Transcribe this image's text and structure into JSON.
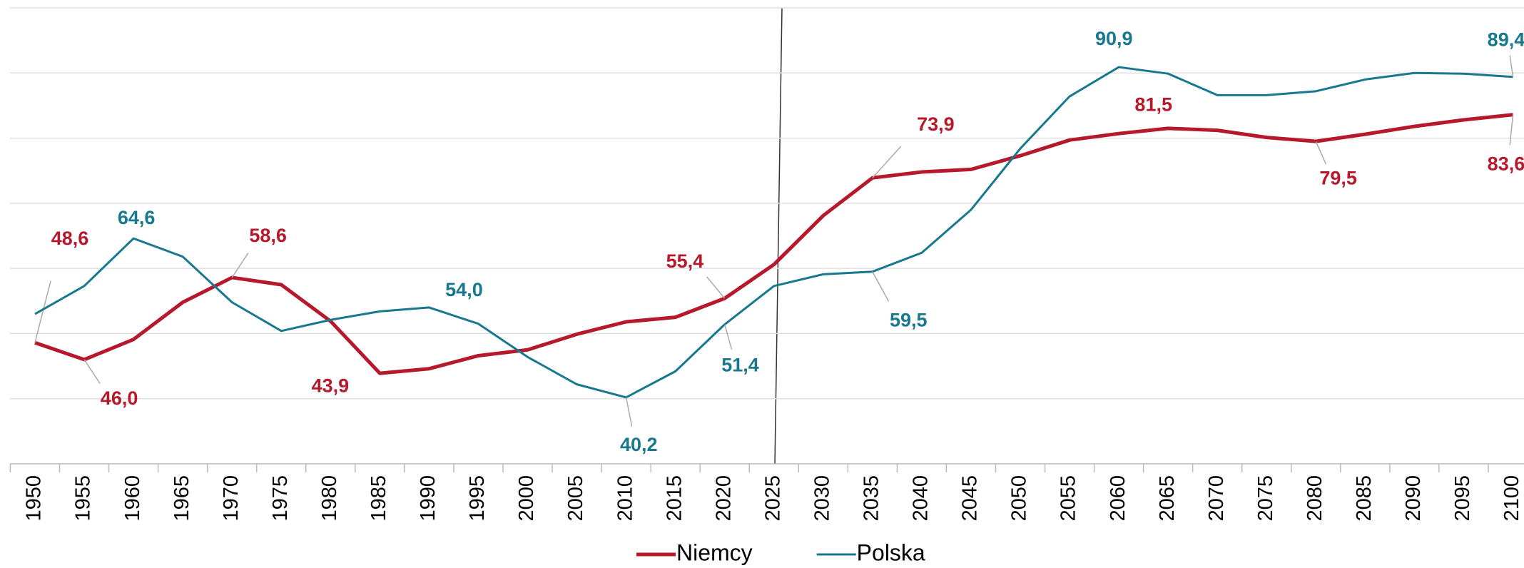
{
  "chart_data": {
    "type": "line",
    "categories": [
      "1950",
      "1955",
      "1960",
      "1965",
      "1970",
      "1975",
      "1980",
      "1985",
      "1990",
      "1995",
      "2000",
      "2005",
      "2010",
      "2015",
      "2020",
      "2025",
      "2030",
      "2035",
      "2040",
      "2045",
      "2050",
      "2055",
      "2060",
      "2065",
      "2070",
      "2075",
      "2080",
      "2085",
      "2090",
      "2095",
      "2100"
    ],
    "series": [
      {
        "name": "Niemcy",
        "color": "#b5192b",
        "values": [
          48.6,
          46.0,
          49.1,
          54.8,
          58.6,
          57.5,
          51.9,
          43.9,
          44.6,
          46.6,
          47.5,
          49.9,
          51.8,
          52.5,
          55.4,
          60.6,
          68.1,
          73.9,
          74.8,
          75.2,
          77.3,
          79.7,
          80.7,
          81.5,
          81.2,
          80.1,
          79.5,
          80.6,
          81.8,
          82.8,
          83.6
        ],
        "value_labels": [
          "48,6",
          "46,0",
          null,
          null,
          "58,6",
          null,
          null,
          "43,9",
          null,
          null,
          null,
          null,
          null,
          null,
          "55,4",
          null,
          null,
          "73,9",
          null,
          null,
          null,
          null,
          null,
          "81,5",
          null,
          null,
          "79,5",
          null,
          null,
          null,
          "83,6"
        ]
      },
      {
        "name": "Polska",
        "color": "#17788e",
        "values": [
          53.0,
          57.3,
          64.6,
          61.8,
          54.8,
          50.4,
          52.1,
          53.4,
          54.0,
          51.5,
          46.4,
          42.2,
          40.2,
          44.2,
          51.4,
          57.3,
          59.1,
          59.5,
          62.4,
          69.0,
          78.4,
          86.4,
          90.9,
          89.9,
          86.6,
          86.6,
          87.2,
          89.0,
          90.0,
          89.9,
          89.4
        ],
        "value_labels": [
          null,
          null,
          "64,6",
          null,
          null,
          null,
          null,
          null,
          "54,0",
          null,
          null,
          null,
          "40,2",
          null,
          "51,4",
          null,
          null,
          "59,5",
          null,
          null,
          null,
          null,
          "90,9",
          null,
          null,
          null,
          null,
          null,
          null,
          null,
          "89,4"
        ]
      }
    ],
    "ylim": [
      30,
      100
    ],
    "yticks": [
      30,
      40,
      50,
      60,
      70,
      80,
      90,
      100
    ],
    "grid": true,
    "legend": "bottom"
  }
}
